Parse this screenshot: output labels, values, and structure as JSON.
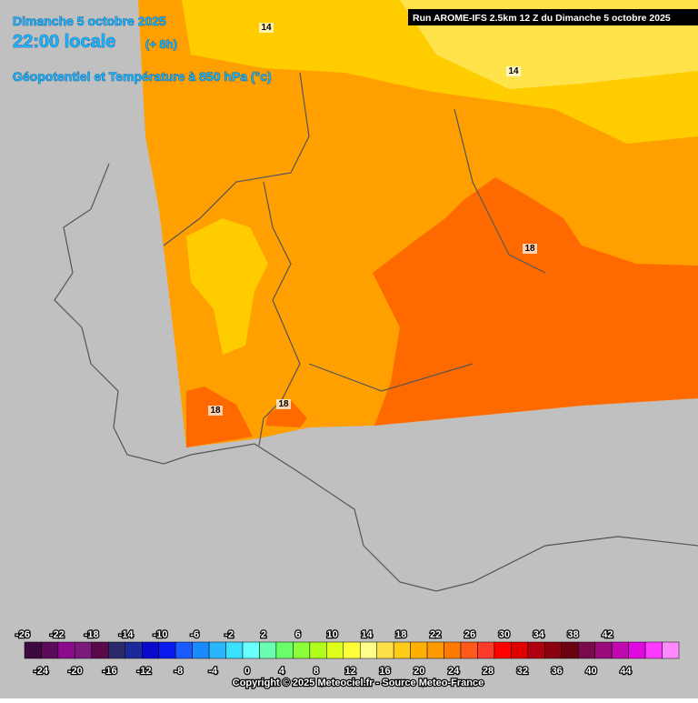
{
  "header": {
    "date": "Dimanche 5 octobre 2025",
    "time": "22:00 locale",
    "lead": "(+ 8h)",
    "field": "Géopotentiel et Température à 850 hPa (°c)",
    "run": "Run AROME-IFS 2.5km 12 Z du Dimanche 5 octobre 2025"
  },
  "contour_labels": [
    14,
    14,
    18,
    18,
    18
  ],
  "legend": {
    "top_labels": [
      -26,
      -22,
      -18,
      -14,
      -10,
      -6,
      -2,
      2,
      6,
      10,
      14,
      18,
      22,
      26,
      30,
      34,
      38,
      42
    ],
    "bottom_labels": [
      -24,
      -20,
      -16,
      -12,
      -8,
      -4,
      0,
      4,
      8,
      12,
      16,
      20,
      24,
      28,
      32,
      36,
      40,
      44
    ],
    "colors": [
      "#3d0a3d",
      "#5c0a5c",
      "#8c0a8c",
      "#7a1a7a",
      "#5a0a4a",
      "#2a2a6a",
      "#1a2a9a",
      "#0a0acc",
      "#0a1aee",
      "#1a5aff",
      "#1a8aff",
      "#2ab5ff",
      "#3ae0ff",
      "#6affff",
      "#6affb0",
      "#6aff6a",
      "#8aff3a",
      "#b0ff1a",
      "#e0ff1a",
      "#ffff3a",
      "#ffff8a",
      "#ffe04a",
      "#ffcc1a",
      "#ffb000",
      "#ff9a00",
      "#ff7a00",
      "#ff5a1a",
      "#ff3a2a",
      "#ff0000",
      "#e00000",
      "#b00010",
      "#8a0010",
      "#6a0010",
      "#7a0a4a",
      "#9a0a7a",
      "#c00ab0",
      "#e00ae0",
      "#ff3aff",
      "#ff8aff"
    ]
  },
  "copyright": "Copyright © 2025 Meteociel.fr - Source Meteo-France"
}
